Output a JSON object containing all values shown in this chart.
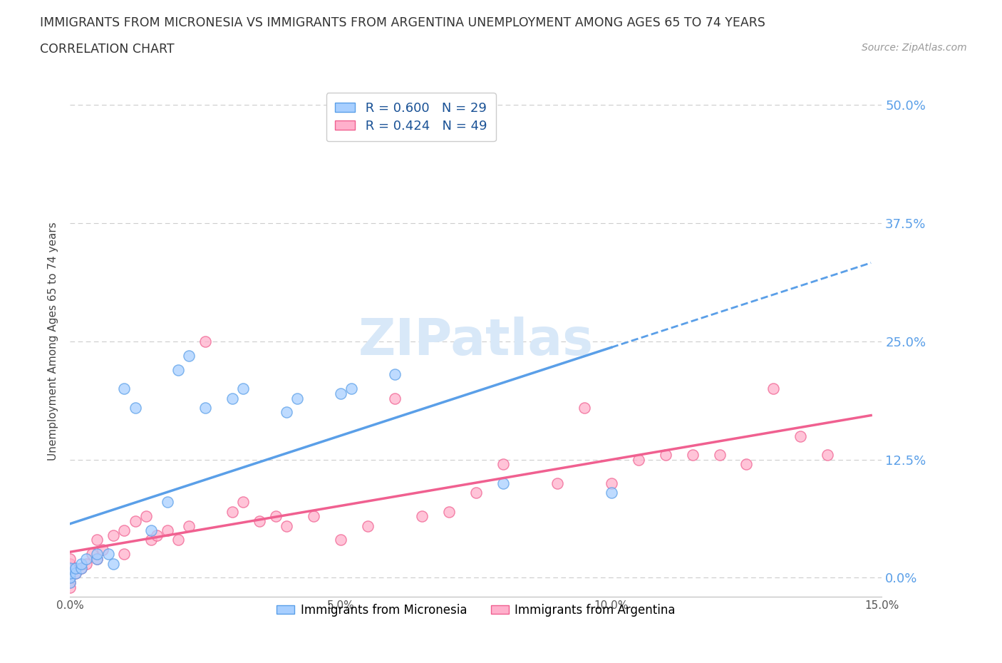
{
  "title_line1": "IMMIGRANTS FROM MICRONESIA VS IMMIGRANTS FROM ARGENTINA UNEMPLOYMENT AMONG AGES 65 TO 74 YEARS",
  "title_line2": "CORRELATION CHART",
  "source_text": "Source: ZipAtlas.com",
  "ylabel": "Unemployment Among Ages 65 to 74 years",
  "xlim": [
    0.0,
    0.15
  ],
  "ylim": [
    -0.02,
    0.52
  ],
  "yticks": [
    0.0,
    0.125,
    0.25,
    0.375,
    0.5
  ],
  "ytick_labels": [
    "0.0%",
    "12.5%",
    "25.0%",
    "37.5%",
    "50.0%"
  ],
  "xticks": [
    0.0,
    0.05,
    0.1,
    0.15
  ],
  "xtick_labels": [
    "0.0%",
    "5.0%",
    "10.0%",
    "15.0%"
  ],
  "legend_label1": "Immigrants from Micronesia",
  "legend_label2": "Immigrants from Argentina",
  "R1": 0.6,
  "N1": 29,
  "R2": 0.424,
  "N2": 49,
  "color1": "#A8CFFF",
  "color2": "#FFB0CC",
  "trendline_color1": "#5A9FE8",
  "trendline_color2": "#F06090",
  "watermark_color": "#D8E8F8",
  "micronesia_x": [
    0.0,
    0.0,
    0.0,
    0.0,
    0.001,
    0.001,
    0.002,
    0.002,
    0.003,
    0.005,
    0.005,
    0.007,
    0.008,
    0.01,
    0.012,
    0.015,
    0.018,
    0.02,
    0.022,
    0.025,
    0.03,
    0.032,
    0.04,
    0.042,
    0.05,
    0.052,
    0.06,
    0.08,
    0.1
  ],
  "micronesia_y": [
    -0.005,
    0.0,
    0.005,
    0.01,
    0.005,
    0.01,
    0.01,
    0.015,
    0.02,
    0.02,
    0.025,
    0.025,
    0.015,
    0.2,
    0.18,
    0.05,
    0.08,
    0.22,
    0.235,
    0.18,
    0.19,
    0.2,
    0.175,
    0.19,
    0.195,
    0.2,
    0.215,
    0.1,
    0.09
  ],
  "argentina_x": [
    0.0,
    0.0,
    0.0,
    0.0,
    0.0,
    0.0,
    0.0,
    0.001,
    0.002,
    0.003,
    0.004,
    0.005,
    0.005,
    0.006,
    0.008,
    0.01,
    0.01,
    0.012,
    0.014,
    0.015,
    0.016,
    0.018,
    0.02,
    0.022,
    0.025,
    0.03,
    0.032,
    0.035,
    0.038,
    0.04,
    0.045,
    0.05,
    0.055,
    0.06,
    0.065,
    0.07,
    0.075,
    0.08,
    0.09,
    0.095,
    0.1,
    0.105,
    0.11,
    0.115,
    0.12,
    0.125,
    0.13,
    0.135,
    0.14
  ],
  "argentina_y": [
    0.0,
    0.005,
    0.01,
    0.015,
    0.02,
    -0.005,
    -0.01,
    0.005,
    0.01,
    0.015,
    0.025,
    0.02,
    0.04,
    0.03,
    0.045,
    0.025,
    0.05,
    0.06,
    0.065,
    0.04,
    0.045,
    0.05,
    0.04,
    0.055,
    0.25,
    0.07,
    0.08,
    0.06,
    0.065,
    0.055,
    0.065,
    0.04,
    0.055,
    0.19,
    0.065,
    0.07,
    0.09,
    0.12,
    0.1,
    0.18,
    0.1,
    0.125,
    0.13,
    0.13,
    0.13,
    0.12,
    0.2,
    0.15,
    0.13
  ],
  "background_color": "#FFFFFF",
  "grid_color": "#CCCCCC"
}
